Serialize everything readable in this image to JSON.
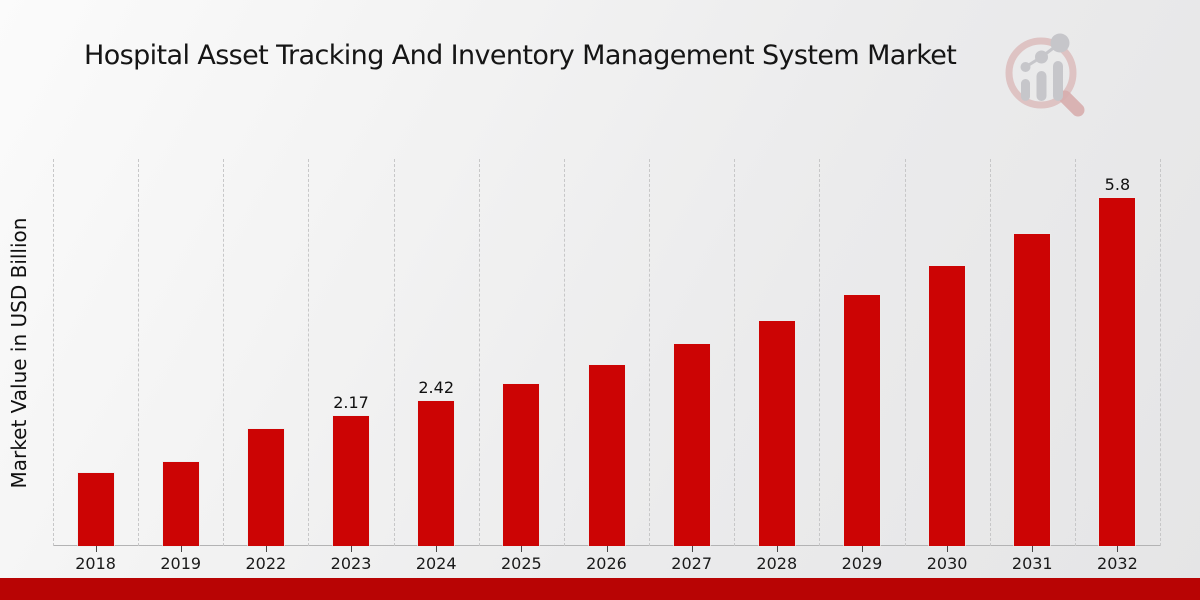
{
  "header": {
    "title": "Hospital Asset Tracking And Inventory Management System Market"
  },
  "chart": {
    "ylabel": "Market Value in USD Billion"
  },
  "chart_data": {
    "type": "bar",
    "title": "Hospital Asset Tracking And Inventory Management System Market",
    "xlabel": "",
    "ylabel": "Market Value in USD Billion",
    "categories": [
      "2018",
      "2019",
      "2022",
      "2023",
      "2024",
      "2025",
      "2026",
      "2027",
      "2028",
      "2029",
      "2030",
      "2031",
      "2032"
    ],
    "values": [
      1.22,
      1.4,
      1.95,
      2.17,
      2.42,
      2.7,
      3.01,
      3.36,
      3.75,
      4.18,
      4.66,
      5.2,
      5.8
    ],
    "data_labels": [
      "",
      "",
      "",
      "2.17",
      "2.42",
      "",
      "",
      "",
      "",
      "",
      "",
      "",
      "5.8"
    ],
    "bar_color": "#cc0404",
    "ylim": [
      0,
      6.4
    ],
    "grid": "vertical-dashed",
    "legend": "none"
  },
  "footer": {
    "accent_color": "#b80404"
  },
  "logo": {
    "name": "magnifier-bar-chart-logo",
    "ring_color": "#dcbcbc",
    "handle_color": "#d8aeae",
    "glyph_color": "#c6c6ca"
  }
}
